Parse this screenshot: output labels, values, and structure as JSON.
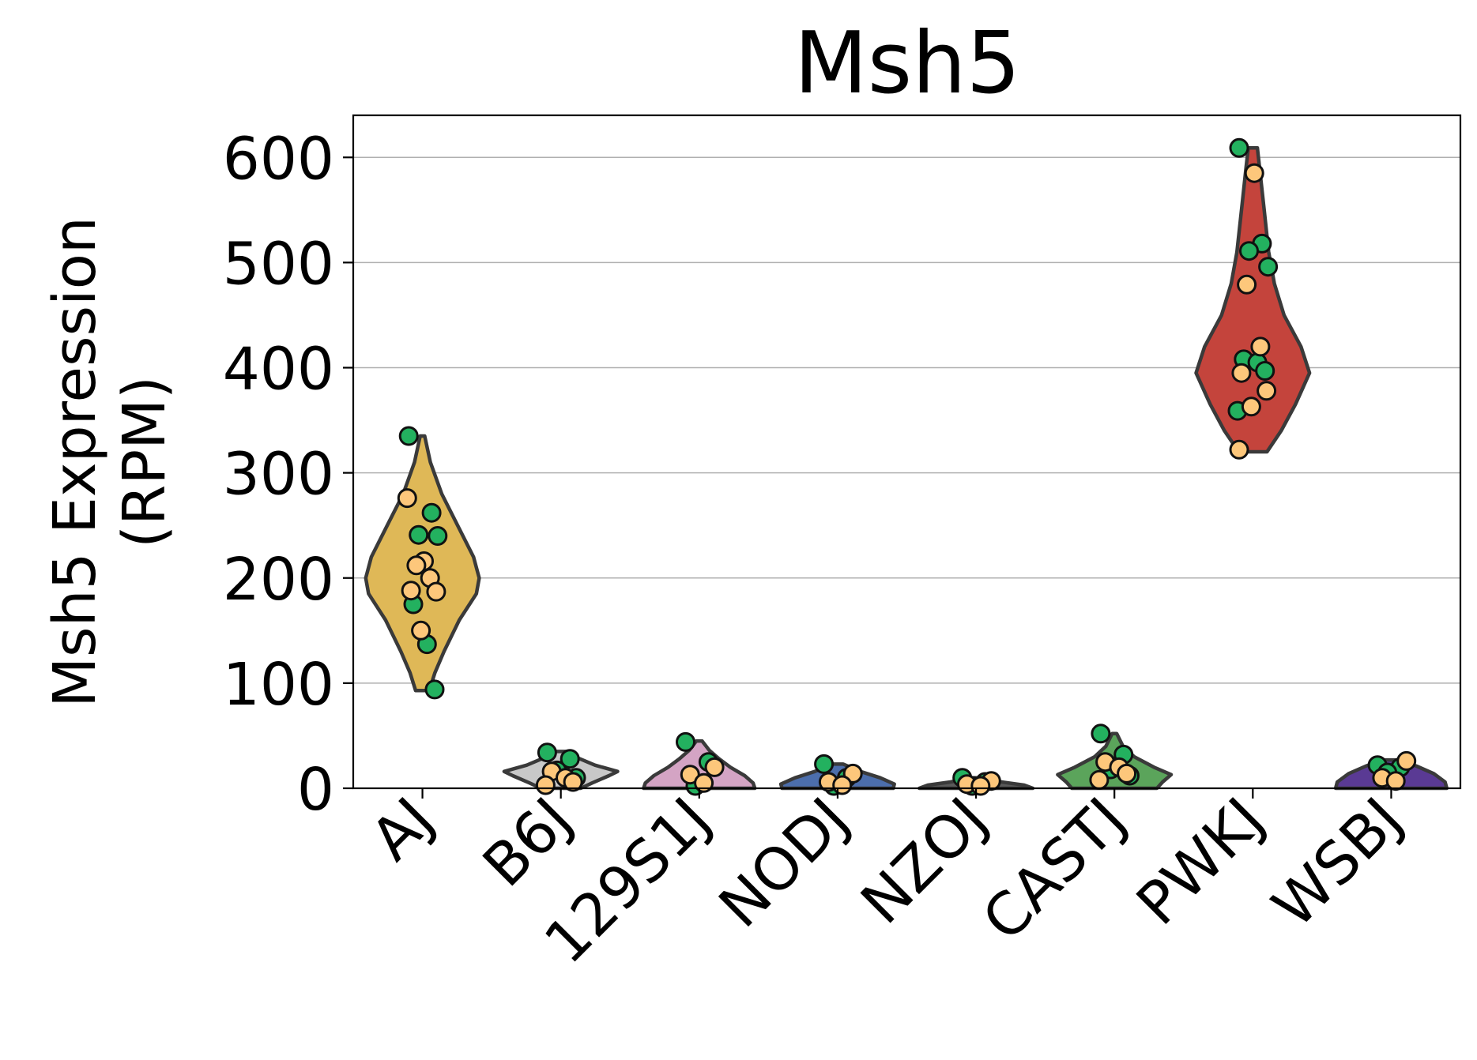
{
  "chart_data": {
    "type": "violin",
    "title": "Msh5",
    "ylabel_line1": "Msh5 Expression",
    "ylabel_line2": "(RPM)",
    "xlabel": "",
    "ylim": [
      0,
      640
    ],
    "yticks": [
      0,
      100,
      200,
      300,
      400,
      500,
      600
    ],
    "grid": "y",
    "categories": [
      "AJ",
      "B6J",
      "129S1J",
      "NODJ",
      "NZOJ",
      "CASTJ",
      "PWKJ",
      "WSBJ"
    ],
    "colors": [
      "#dfb857",
      "#c8c8c8",
      "#d4a4c4",
      "#4c6eac",
      "#5a5a5a",
      "#5ba45b",
      "#c4443c",
      "#5a3a94"
    ],
    "point_colors": {
      "group_a": "#23b15f",
      "group_b": "#fdc77b"
    },
    "violins": [
      {
        "category": "AJ",
        "min": 93,
        "max": 335,
        "profile": [
          [
            93,
            0.12
          ],
          [
            110,
            0.22
          ],
          [
            130,
            0.38
          ],
          [
            160,
            0.65
          ],
          [
            185,
            0.95
          ],
          [
            200,
            1.0
          ],
          [
            220,
            0.9
          ],
          [
            250,
            0.62
          ],
          [
            280,
            0.34
          ],
          [
            310,
            0.14
          ],
          [
            335,
            0.04
          ]
        ]
      },
      {
        "category": "B6J",
        "min": 0,
        "max": 35,
        "profile": [
          [
            0,
            0.35
          ],
          [
            5,
            0.55
          ],
          [
            12,
            0.85
          ],
          [
            16,
            1.0
          ],
          [
            22,
            0.6
          ],
          [
            30,
            0.25
          ],
          [
            35,
            0.1
          ]
        ]
      },
      {
        "category": "129S1J",
        "min": 0,
        "max": 45,
        "profile": [
          [
            0,
            0.98
          ],
          [
            5,
            0.95
          ],
          [
            12,
            0.8
          ],
          [
            20,
            0.55
          ],
          [
            28,
            0.35
          ],
          [
            36,
            0.18
          ],
          [
            45,
            0.05
          ]
        ]
      },
      {
        "category": "NODJ",
        "min": 0,
        "max": 23,
        "profile": [
          [
            0,
            0.98
          ],
          [
            4,
            1.0
          ],
          [
            10,
            0.75
          ],
          [
            16,
            0.4
          ],
          [
            23,
            0.1
          ]
        ]
      },
      {
        "category": "NZOJ",
        "min": 0,
        "max": 10,
        "profile": [
          [
            0,
            1.0
          ],
          [
            3,
            0.85
          ],
          [
            6,
            0.45
          ],
          [
            10,
            0.1
          ]
        ]
      },
      {
        "category": "CASTJ",
        "min": 0,
        "max": 52,
        "profile": [
          [
            0,
            0.75
          ],
          [
            6,
            0.85
          ],
          [
            13,
            1.0
          ],
          [
            20,
            0.7
          ],
          [
            30,
            0.35
          ],
          [
            40,
            0.15
          ],
          [
            52,
            0.04
          ]
        ]
      },
      {
        "category": "PWKJ",
        "min": 320,
        "max": 609,
        "profile": [
          [
            320,
            0.25
          ],
          [
            340,
            0.5
          ],
          [
            365,
            0.75
          ],
          [
            395,
            1.0
          ],
          [
            420,
            0.85
          ],
          [
            450,
            0.55
          ],
          [
            480,
            0.38
          ],
          [
            510,
            0.28
          ],
          [
            550,
            0.2
          ],
          [
            590,
            0.12
          ],
          [
            609,
            0.08
          ]
        ]
      },
      {
        "category": "WSBJ",
        "min": 0,
        "max": 27,
        "profile": [
          [
            0,
            0.98
          ],
          [
            6,
            0.95
          ],
          [
            14,
            0.75
          ],
          [
            21,
            0.45
          ],
          [
            27,
            0.15
          ]
        ]
      }
    ],
    "points": [
      {
        "category": "AJ",
        "green": [
          335,
          262,
          241,
          240,
          175,
          137,
          94
        ],
        "orange": [
          276,
          216,
          212,
          200,
          188,
          187,
          150
        ]
      },
      {
        "category": "B6J",
        "green": [
          34,
          28,
          17,
          10
        ],
        "orange": [
          16,
          10,
          6,
          3
        ]
      },
      {
        "category": "129S1J",
        "green": [
          44,
          25,
          0
        ],
        "orange": [
          20,
          13,
          5
        ]
      },
      {
        "category": "NODJ",
        "green": [
          23,
          10,
          2
        ],
        "orange": [
          14,
          6,
          3
        ]
      },
      {
        "category": "NZOJ",
        "green": [
          10,
          6,
          1
        ],
        "orange": [
          7,
          4,
          2
        ]
      },
      {
        "category": "CASTJ",
        "green": [
          52,
          32,
          18,
          12
        ],
        "orange": [
          25,
          20,
          14,
          8
        ]
      },
      {
        "category": "PWKJ",
        "green": [
          609,
          518,
          511,
          496,
          408,
          405,
          397,
          359
        ],
        "orange": [
          585,
          479,
          420,
          395,
          378,
          363,
          322
        ]
      },
      {
        "category": "WSBJ",
        "green": [
          22,
          20,
          15
        ],
        "orange": [
          26,
          10,
          7
        ]
      }
    ]
  }
}
